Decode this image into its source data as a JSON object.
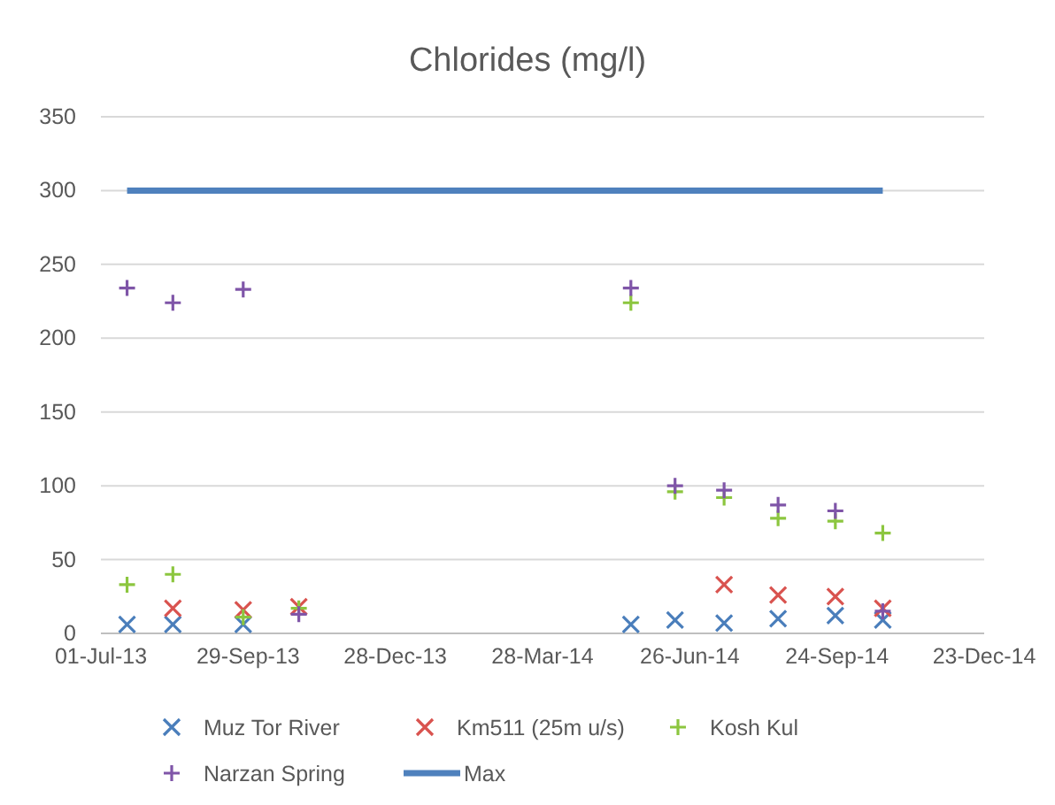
{
  "chart_data": {
    "type": "scatter",
    "title": "Chlorides (mg/l)",
    "xlim": [
      "2013-07-01",
      "2014-12-23"
    ],
    "xticks": [
      {
        "value": "2013-07-01",
        "label": "01-Jul-13"
      },
      {
        "value": "2013-09-29",
        "label": "29-Sep-13"
      },
      {
        "value": "2013-12-28",
        "label": "28-Dec-13"
      },
      {
        "value": "2014-03-28",
        "label": "28-Mar-14"
      },
      {
        "value": "2014-06-26",
        "label": "26-Jun-14"
      },
      {
        "value": "2014-09-24",
        "label": "24-Sep-14"
      },
      {
        "value": "2014-12-23",
        "label": "23-Dec-14"
      }
    ],
    "ylim": [
      0,
      350
    ],
    "yticks": [
      0,
      50,
      100,
      150,
      200,
      250,
      300,
      350
    ],
    "x": [
      "2013-07-17",
      "2013-08-14",
      "2013-09-26",
      "2013-10-30",
      "2014-05-21",
      "2014-06-17",
      "2014-07-17",
      "2014-08-19",
      "2014-09-23",
      "2014-10-22"
    ],
    "series": [
      {
        "name": "Muz Tor River",
        "color": "#4a7ebb",
        "marker": "cross",
        "values": [
          6,
          6,
          6,
          null,
          6,
          9,
          7,
          10,
          12,
          9
        ]
      },
      {
        "name": "Km511 (25m u/s)",
        "color": "#d9534f",
        "marker": "cross",
        "values": [
          null,
          17,
          16,
          18,
          null,
          null,
          33,
          26,
          25,
          17
        ]
      },
      {
        "name": "Kosh Kul",
        "color": "#8cc63f",
        "marker": "plus",
        "values": [
          33,
          40,
          11,
          17,
          224,
          96,
          92,
          78,
          76,
          68
        ]
      },
      {
        "name": "Narzan Spring",
        "color": "#7f55a8",
        "marker": "plus",
        "values": [
          234,
          224,
          233,
          13,
          234,
          100,
          97,
          87,
          83,
          15
        ]
      },
      {
        "name": "Max",
        "type": "line",
        "color": "#4f81bd",
        "marker": "none",
        "line_style": "solid",
        "x": [
          "2013-07-17",
          "2014-10-22"
        ],
        "values": [
          300,
          300
        ]
      }
    ],
    "grid": "y",
    "legend": "bottom"
  }
}
